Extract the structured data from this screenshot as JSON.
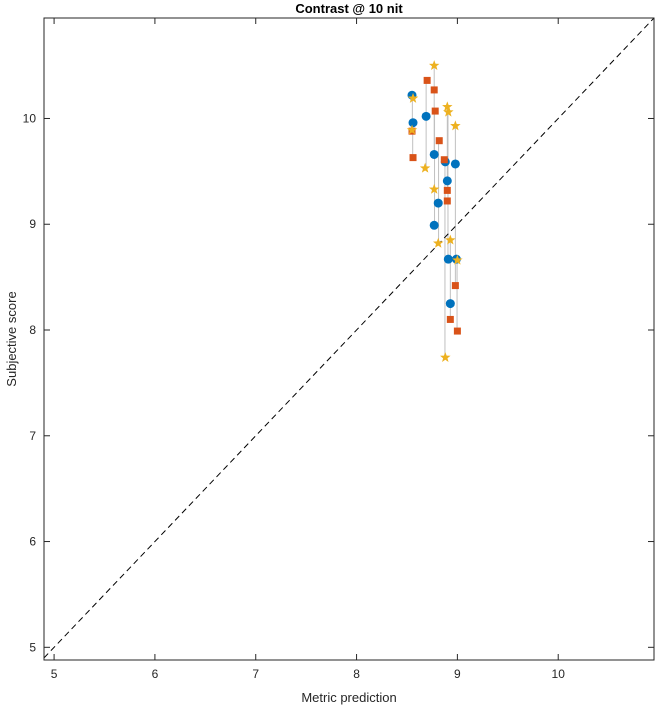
{
  "chart_data": {
    "type": "scatter",
    "title": "Contrast @ 10 nit",
    "xlabel": "Metric prediction",
    "ylabel": "Subjective score",
    "xlim": [
      4.9,
      10.95
    ],
    "ylim": [
      4.88,
      10.95
    ],
    "xticks": [
      "5",
      "6",
      "7",
      "8",
      "9",
      "10"
    ],
    "yticks": [
      "5",
      "6",
      "7",
      "8",
      "9",
      "10"
    ],
    "grid": false,
    "reference_line": {
      "type": "identity",
      "style": "dashed",
      "color": "#000000"
    },
    "colors": {
      "circle": "#0072BD",
      "square": "#D95319",
      "star": "#EDB120",
      "connector": "#C0C0C0",
      "axis": "#262626"
    },
    "series": [
      {
        "marker": "circle",
        "points": [
          {
            "x": 8.55,
            "y": 10.22
          },
          {
            "x": 8.56,
            "y": 9.96
          },
          {
            "x": 8.69,
            "y": 10.02
          },
          {
            "x": 8.77,
            "y": 9.66
          },
          {
            "x": 8.77,
            "y": 8.99
          },
          {
            "x": 8.81,
            "y": 9.2
          },
          {
            "x": 8.88,
            "y": 9.59
          },
          {
            "x": 8.9,
            "y": 9.41
          },
          {
            "x": 8.91,
            "y": 8.67
          },
          {
            "x": 8.93,
            "y": 8.25
          },
          {
            "x": 8.98,
            "y": 9.57
          },
          {
            "x": 8.99,
            "y": 8.67
          }
        ]
      },
      {
        "marker": "square",
        "points": [
          {
            "x": 8.55,
            "y": 9.88
          },
          {
            "x": 8.56,
            "y": 9.63
          },
          {
            "x": 8.7,
            "y": 10.36
          },
          {
            "x": 8.77,
            "y": 10.27
          },
          {
            "x": 8.78,
            "y": 10.07
          },
          {
            "x": 8.82,
            "y": 9.79
          },
          {
            "x": 8.87,
            "y": 9.61
          },
          {
            "x": 8.9,
            "y": 9.32
          },
          {
            "x": 8.9,
            "y": 9.22
          },
          {
            "x": 8.93,
            "y": 8.1
          },
          {
            "x": 8.98,
            "y": 8.42
          },
          {
            "x": 9.0,
            "y": 7.99
          }
        ]
      },
      {
        "marker": "star",
        "points": [
          {
            "x": 8.56,
            "y": 10.19
          },
          {
            "x": 8.55,
            "y": 9.89
          },
          {
            "x": 8.68,
            "y": 9.53
          },
          {
            "x": 8.77,
            "y": 10.5
          },
          {
            "x": 8.77,
            "y": 9.33
          },
          {
            "x": 8.81,
            "y": 8.82
          },
          {
            "x": 8.88,
            "y": 7.74
          },
          {
            "x": 8.9,
            "y": 10.11
          },
          {
            "x": 8.91,
            "y": 10.06
          },
          {
            "x": 8.93,
            "y": 8.85
          },
          {
            "x": 8.98,
            "y": 9.93
          },
          {
            "x": 9.0,
            "y": 8.66
          }
        ]
      }
    ]
  }
}
